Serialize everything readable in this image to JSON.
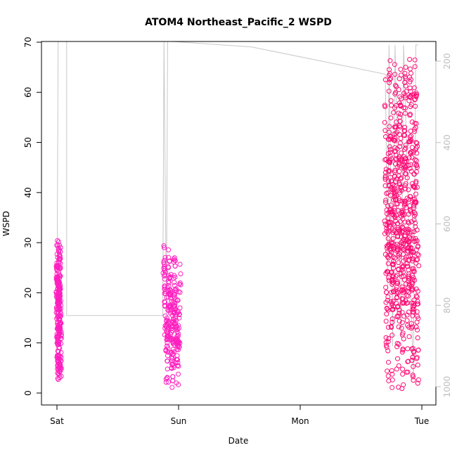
{
  "chart_data": {
    "type": "scatter",
    "title": "ATOM4 Northeast_Pacific_2 WSPD",
    "xlabel": "Date",
    "ylabel": "WSPD",
    "x_ticks": [
      "Sat",
      "Sun",
      "Mon",
      "Tue"
    ],
    "y_ticks": [
      "0",
      "10",
      "20",
      "30",
      "40",
      "50",
      "60",
      "70"
    ],
    "ylim": [
      0,
      70
    ],
    "y2_ticks": [
      "200",
      "400",
      "600",
      "800",
      "1000"
    ],
    "y2lim": [
      1020,
      160
    ],
    "y2_reversed": true,
    "grid": false,
    "colors": {
      "wspd_early": "#ff1fbf",
      "wspd_late": "#ff0a74",
      "pressure_line": "#c8c8c8",
      "right_axis": "#bdbdbd"
    },
    "wspd_bursts": [
      {
        "day_start": 0.0,
        "day_end": 0.03,
        "min": 2,
        "max": 31
      },
      {
        "day_start": 0.88,
        "day_end": 1.01,
        "min": 0.5,
        "max": 30
      },
      {
        "day_start": 2.7,
        "day_end": 2.97,
        "min": 0.5,
        "max": 67
      }
    ],
    "pressure_track": [
      {
        "day": 0.0,
        "value": 820
      },
      {
        "day": 0.005,
        "value": 460
      },
      {
        "day": 0.01,
        "value": 150
      },
      {
        "day": 0.08,
        "value": 150
      },
      {
        "day": 0.08,
        "value": 825
      },
      {
        "day": 0.87,
        "value": 825
      },
      {
        "day": 0.88,
        "value": 150
      },
      {
        "day": 0.9,
        "value": 820
      },
      {
        "day": 0.91,
        "value": 150
      },
      {
        "day": 0.95,
        "value": 150
      },
      {
        "day": 1.6,
        "value": 165
      },
      {
        "day": 2.7,
        "value": 232
      },
      {
        "day": 2.72,
        "value": 760
      },
      {
        "day": 2.73,
        "value": 160
      },
      {
        "day": 2.76,
        "value": 900
      },
      {
        "day": 2.78,
        "value": 160
      },
      {
        "day": 2.83,
        "value": 880
      },
      {
        "day": 2.85,
        "value": 160
      },
      {
        "day": 2.93,
        "value": 980
      },
      {
        "day": 2.95,
        "value": 160
      },
      {
        "day": 2.97,
        "value": 160
      }
    ]
  }
}
